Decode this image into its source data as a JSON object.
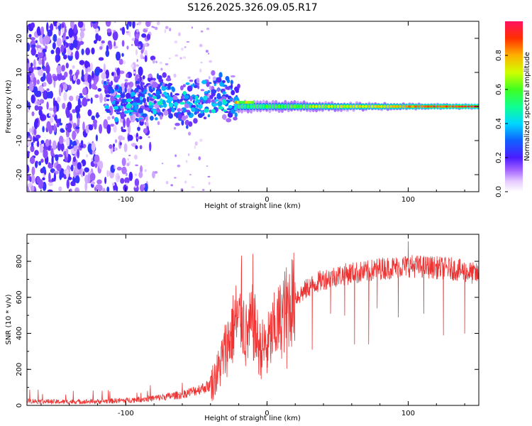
{
  "title": "S126.2025.326.09.05.R17",
  "chart_data": [
    {
      "type": "heatmap",
      "title": "S126.2025.326.09.05.R17",
      "xlabel": "Height of straight line (km)",
      "ylabel": "Frequency (Hz)",
      "xlim": [
        -170,
        150
      ],
      "ylim": [
        -25,
        25
      ],
      "x_ticks": [
        -100,
        0,
        100
      ],
      "y_ticks": [
        -20,
        -10,
        0,
        10,
        20
      ],
      "colorbar": {
        "label": "Normalized spectral amplitude",
        "range": [
          0.0,
          1.0
        ],
        "ticks": [
          0.0,
          0.2,
          0.4,
          0.6,
          0.8
        ]
      },
      "features": [
        {
          "name": "noise",
          "x": [
            -170,
            -100
          ],
          "freq_range": [
            -25,
            25
          ],
          "amplitude": 0.2
        },
        {
          "name": "transition",
          "x": [
            -115,
            -20
          ],
          "freq_range": [
            -6,
            9
          ],
          "amplitude": 0.3
        },
        {
          "name": "carrier",
          "x": [
            -20,
            150
          ],
          "freq": 0,
          "amplitude_start": 0.5,
          "amplitude_end": 0.95
        }
      ]
    },
    {
      "type": "line",
      "xlabel": "Height of straight line (km)",
      "ylabel": "SNR (10 * v/v)",
      "xlim": [
        -170,
        150
      ],
      "ylim": [
        0,
        950
      ],
      "x_ticks": [
        -100,
        0,
        100
      ],
      "y_ticks": [
        0,
        200,
        400,
        600,
        800
      ],
      "color": "#ee3333",
      "series": [
        {
          "name": "SNR",
          "x": [
            -170,
            -150,
            -120,
            -100,
            -80,
            -60,
            -50,
            -40,
            -35,
            -30,
            -25,
            -22,
            -20,
            -18,
            -15,
            -10,
            -5,
            0,
            5,
            10,
            15,
            20,
            25,
            30,
            40,
            50,
            60,
            70,
            80,
            90,
            100,
            110,
            120,
            130,
            140,
            150
          ],
          "values": [
            25,
            20,
            22,
            28,
            40,
            60,
            85,
            110,
            180,
            300,
            400,
            480,
            440,
            520,
            380,
            460,
            310,
            330,
            420,
            480,
            560,
            600,
            625,
            660,
            700,
            720,
            735,
            740,
            760,
            765,
            775,
            770,
            765,
            760,
            745,
            725
          ]
        }
      ],
      "dips": [
        {
          "x": -18,
          "y": 830
        },
        {
          "x": -10,
          "y": 840
        },
        {
          "x": 0,
          "y": 180
        },
        {
          "x": 14,
          "y": 205
        },
        {
          "x": 32,
          "y": 310
        },
        {
          "x": 45,
          "y": 510
        },
        {
          "x": 55,
          "y": 500
        },
        {
          "x": 62,
          "y": 340
        },
        {
          "x": 72,
          "y": 340
        },
        {
          "x": 78,
          "y": 540
        },
        {
          "x": 93,
          "y": 490
        },
        {
          "x": 100,
          "y": 910
        },
        {
          "x": 111,
          "y": 510
        },
        {
          "x": 125,
          "y": 390
        },
        {
          "x": 140,
          "y": 400
        }
      ]
    }
  ]
}
